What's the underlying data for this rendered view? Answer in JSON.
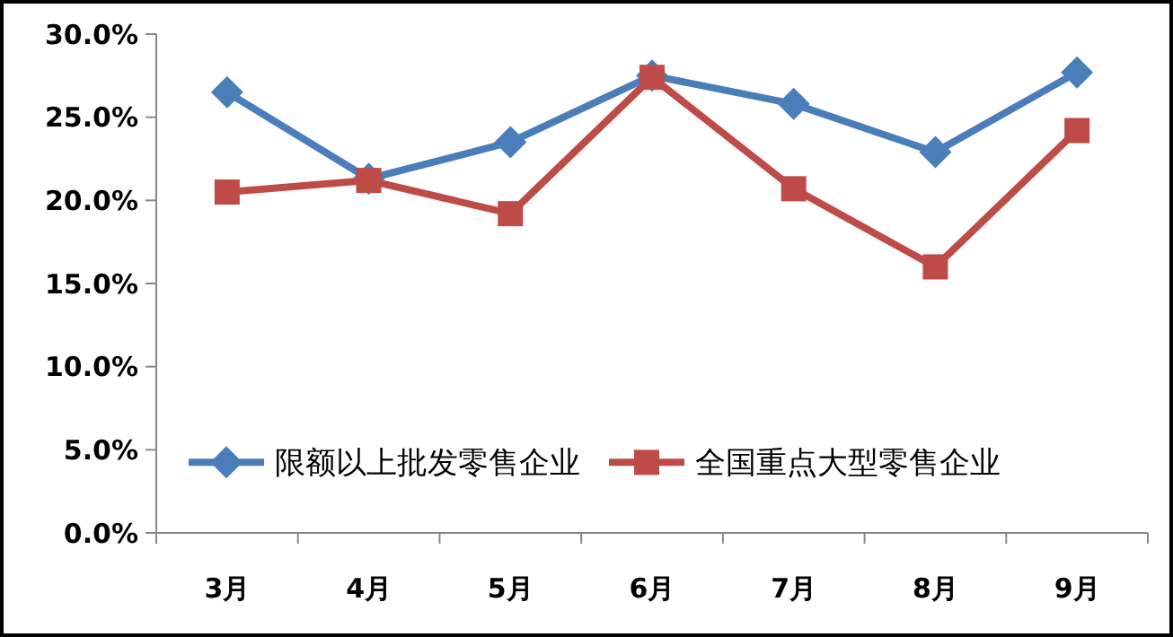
{
  "chart_data": {
    "type": "line",
    "categories": [
      "3月",
      "4月",
      "5月",
      "6月",
      "7月",
      "8月",
      "9月"
    ],
    "series": [
      {
        "name": "限额以上批发零售企业",
        "color": "#4a7ebb",
        "marker": "diamond",
        "values": [
          26.5,
          21.3,
          23.5,
          27.5,
          25.8,
          22.9,
          27.7
        ]
      },
      {
        "name": "全国重点大型零售企业",
        "color": "#be4b48",
        "marker": "square",
        "values": [
          20.5,
          21.2,
          19.2,
          27.4,
          20.7,
          16.0,
          24.2
        ]
      }
    ],
    "ylim": [
      0,
      30
    ],
    "yticks": [
      {
        "value": 0,
        "label": "0.0%"
      },
      {
        "value": 5,
        "label": "5.0%"
      },
      {
        "value": 10,
        "label": "10.0%"
      },
      {
        "value": 15,
        "label": "15.0%"
      },
      {
        "value": 20,
        "label": "20.0%"
      },
      {
        "value": 25,
        "label": "25.0%"
      },
      {
        "value": 30,
        "label": "30.0%"
      }
    ],
    "legend": "bottom",
    "grid": false
  }
}
